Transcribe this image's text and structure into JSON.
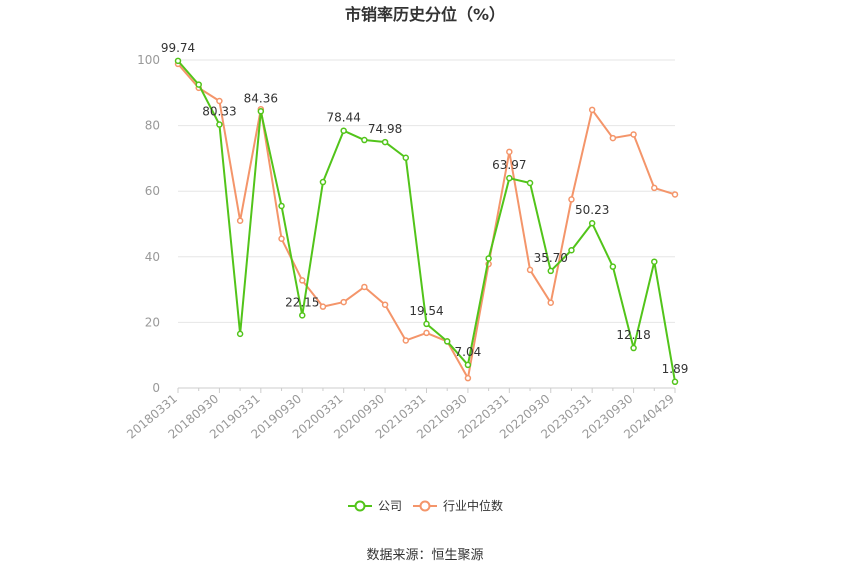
{
  "chart_data": {
    "type": "line",
    "title": "市销率历史分位（%）",
    "xlabel": "",
    "ylabel": "",
    "ylim": [
      0,
      100
    ],
    "yticks": [
      0,
      20,
      40,
      60,
      80,
      100
    ],
    "grid": true,
    "legend_position": "bottom",
    "x": [
      "20180331",
      "20180630",
      "20180930",
      "20181231",
      "20190331",
      "20190630",
      "20190930",
      "20191231",
      "20200331",
      "20200630",
      "20200930",
      "20201231",
      "20210331",
      "20210630",
      "20210930",
      "20211231",
      "20220331",
      "20220630",
      "20220930",
      "20221231",
      "20230331",
      "20230630",
      "20230930",
      "20231231",
      "20240429"
    ],
    "x_tick_labels": [
      "20180331",
      "20180930",
      "20190331",
      "20190930",
      "20200331",
      "20200930",
      "20210331",
      "20210930",
      "20220331",
      "20220930",
      "20230331",
      "20230930",
      "20240429"
    ],
    "series": [
      {
        "name": "公司",
        "color": "#52c41a",
        "values": [
          99.74,
          92.5,
          80.33,
          16.5,
          84.36,
          55.5,
          22.15,
          62.8,
          78.44,
          75.6,
          74.98,
          70.2,
          19.54,
          14.2,
          7.04,
          39.5,
          63.97,
          62.5,
          35.7,
          42.0,
          50.23,
          37.0,
          12.18,
          38.5,
          1.89
        ],
        "labels": {
          "0": "99.74",
          "2": "80.33",
          "4": "84.36",
          "6": "22.15",
          "8": "78.44",
          "10": "74.98",
          "12": "19.54",
          "14": "7.04",
          "16": "63.97",
          "18": "35.70",
          "20": "50.23",
          "22": "12.18",
          "24": "1.89"
        }
      },
      {
        "name": "行业中位数",
        "color": "#f4956a",
        "values": [
          98.8,
          91.5,
          87.5,
          51.0,
          85.0,
          45.5,
          32.8,
          24.8,
          26.2,
          30.8,
          25.4,
          14.5,
          16.8,
          14.2,
          3.0,
          37.8,
          72.0,
          36.0,
          26.0,
          57.5,
          84.8,
          76.2,
          77.3,
          61.0,
          59.0
        ]
      }
    ]
  },
  "legend": {
    "company": "公司",
    "industry": "行业中位数"
  },
  "source_text": "数据来源：恒生聚源"
}
